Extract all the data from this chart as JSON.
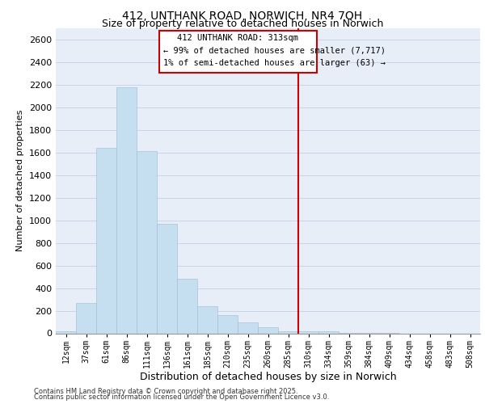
{
  "title": "412, UNTHANK ROAD, NORWICH, NR4 7QH",
  "subtitle": "Size of property relative to detached houses in Norwich",
  "xlabel": "Distribution of detached houses by size in Norwich",
  "ylabel": "Number of detached properties",
  "footnote1": "Contains HM Land Registry data © Crown copyright and database right 2025.",
  "footnote2": "Contains public sector information licensed under the Open Government Licence v3.0.",
  "annotation_title": "412 UNTHANK ROAD: 313sqm",
  "annotation_line1": "← 99% of detached houses are smaller (7,717)",
  "annotation_line2": "1% of semi-detached houses are larger (63) →",
  "bar_labels": [
    "12sqm",
    "37sqm",
    "61sqm",
    "86sqm",
    "111sqm",
    "136sqm",
    "161sqm",
    "185sqm",
    "210sqm",
    "235sqm",
    "260sqm",
    "285sqm",
    "310sqm",
    "334sqm",
    "359sqm",
    "384sqm",
    "409sqm",
    "434sqm",
    "458sqm",
    "483sqm",
    "508sqm"
  ],
  "bar_values": [
    20,
    270,
    1640,
    2180,
    1610,
    970,
    480,
    240,
    160,
    95,
    55,
    20,
    15,
    20,
    5,
    3,
    2,
    0,
    0,
    0,
    0
  ],
  "bar_color": "#c5dff0",
  "vline_x_index": 12,
  "vline_color": "#cc0000",
  "annotation_box_color": "#cc0000",
  "grid_color": "#c8d4e8",
  "background_color": "#e8eef8",
  "ylim": [
    0,
    2700
  ],
  "yticks": [
    0,
    200,
    400,
    600,
    800,
    1000,
    1200,
    1400,
    1600,
    1800,
    2000,
    2200,
    2400,
    2600
  ],
  "title_fontsize": 10,
  "subtitle_fontsize": 9,
  "ylabel_fontsize": 8,
  "xlabel_fontsize": 9
}
